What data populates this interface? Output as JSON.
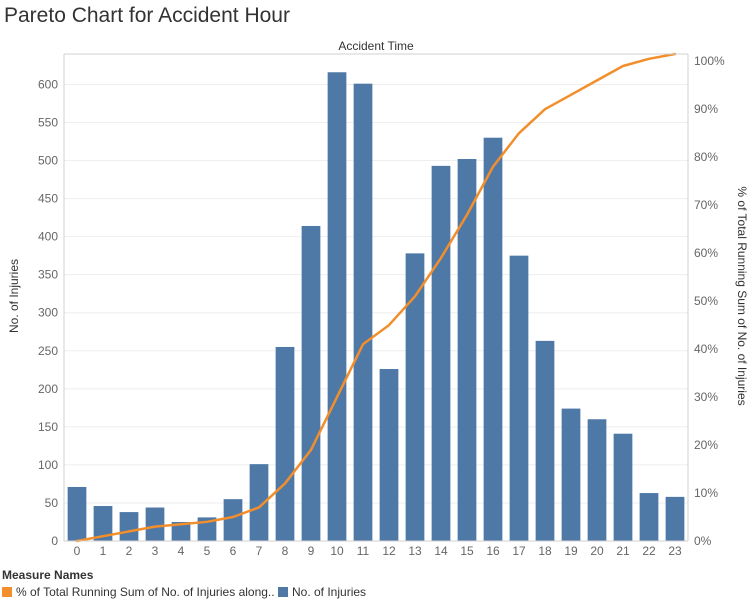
{
  "title": "Pareto Chart for Accident Hour",
  "colors": {
    "bar": "#4e79a7",
    "line": "#f28e2b",
    "grid": "#eeeeee",
    "axis": "#d0d0d0"
  },
  "legend": {
    "title": "Measure Names",
    "items": [
      {
        "label": "% of Total Running Sum of No. of Injuries along..",
        "color": "#f28e2b"
      },
      {
        "label": "No. of Injuries",
        "color": "#4e79a7"
      }
    ]
  },
  "chart_data": {
    "type": "bar",
    "title": "Pareto Chart for Accident Hour",
    "xlabel": "Accident Time",
    "ylabel": "No. of Injuries",
    "y2label": "% of Total Running Sum of No. of Injuries",
    "categories": [
      "0",
      "1",
      "2",
      "3",
      "4",
      "5",
      "6",
      "7",
      "8",
      "9",
      "10",
      "11",
      "12",
      "13",
      "14",
      "15",
      "16",
      "17",
      "18",
      "19",
      "20",
      "21",
      "22",
      "23"
    ],
    "series": [
      {
        "name": "No. of Injuries",
        "type": "bar",
        "axis": "left",
        "values": [
          71,
          46,
          38,
          44,
          25,
          31,
          55,
          101,
          255,
          414,
          616,
          601,
          226,
          378,
          493,
          502,
          530,
          375,
          263,
          174,
          160,
          141,
          63,
          58
        ]
      },
      {
        "name": "% of Total Running Sum of No. of Injuries along..",
        "type": "line",
        "axis": "right",
        "values": [
          0.0,
          1.0,
          2.0,
          3.0,
          3.5,
          4.0,
          5.0,
          7.0,
          12.0,
          19.0,
          30.0,
          41.0,
          45.0,
          51.0,
          59.0,
          68.0,
          78.0,
          85.0,
          90.0,
          93.0,
          96.0,
          99.0,
          100.5,
          101.5
        ]
      }
    ],
    "ylim": [
      0,
      640
    ],
    "yticks": [
      0,
      50,
      100,
      150,
      200,
      250,
      300,
      350,
      400,
      450,
      500,
      550,
      600
    ],
    "y2lim": [
      0,
      101.5
    ],
    "y2ticks": [
      0,
      10,
      20,
      30,
      40,
      50,
      60,
      70,
      80,
      90,
      100
    ],
    "y2tick_labels": [
      "0%",
      "10%",
      "20%",
      "30%",
      "40%",
      "50%",
      "60%",
      "70%",
      "80%",
      "90%",
      "100%"
    ],
    "grid": true,
    "legend_position": "bottom-left"
  }
}
